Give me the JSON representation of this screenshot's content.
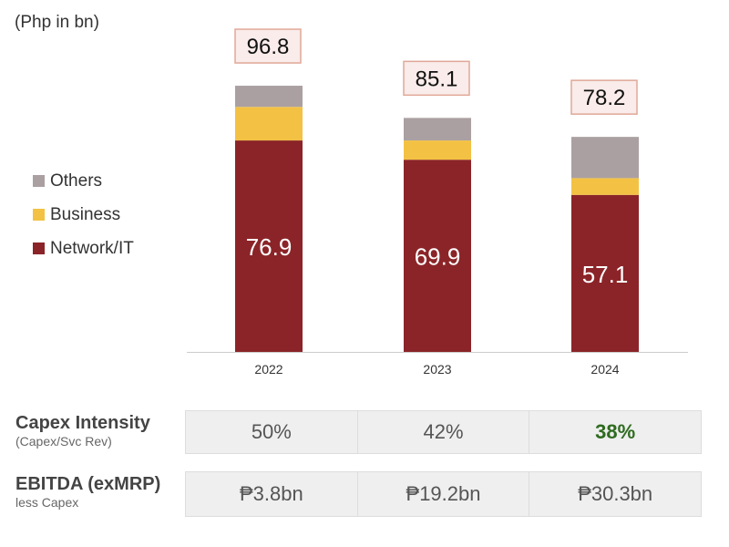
{
  "chart_data": {
    "type": "bar",
    "stacked": true,
    "unit_label": "(Php in bn)",
    "categories": [
      "2022",
      "2023",
      "2024"
    ],
    "series": [
      {
        "name": "Network/IT",
        "values": [
          76.9,
          69.9,
          57.1
        ],
        "color": "#8b2428"
      },
      {
        "name": "Business",
        "values": [
          12.2,
          7.0,
          6.1
        ],
        "color": "#f3c244"
      },
      {
        "name": "Others",
        "values": [
          7.7,
          8.2,
          15.0
        ],
        "color": "#aba0a1"
      }
    ],
    "totals": [
      "96.8",
      "85.1",
      "78.2"
    ],
    "segment_labels": [
      "76.9",
      "69.9",
      "57.1"
    ],
    "legend_order": [
      "Others",
      "Business",
      "Network/IT"
    ],
    "legend_position": "left",
    "grid": false
  },
  "table": {
    "rows": [
      {
        "title": "Capex Intensity",
        "subtitle": "(Capex/Svc Rev)",
        "values": [
          "50%",
          "42%",
          "38%"
        ]
      },
      {
        "title": "EBITDA (exMRP)",
        "subtitle": "less Capex",
        "values": [
          "₱3.8bn",
          "₱19.2bn",
          "₱30.3bn"
        ]
      }
    ],
    "highlight_color": "#2e6b1f"
  }
}
